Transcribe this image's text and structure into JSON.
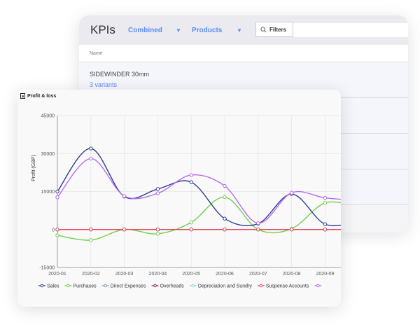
{
  "kpi_panel": {
    "title": "KPIs",
    "dropdown_combined": "Combined",
    "dropdown_products": "Products",
    "filters_label": "Filters",
    "column_name": "Name",
    "rows": [
      {
        "name": "SIDEWINDER 30mm",
        "variants": "3 variants"
      }
    ]
  },
  "chart_card": {
    "title": "Profit & loss",
    "icon": "document-icon"
  },
  "chart_data": {
    "type": "line",
    "ylabel": "Profit (GBP)",
    "xlabel": "",
    "ylim": [
      -15000,
      45000
    ],
    "yticks": [
      "-15000",
      "0",
      "15000",
      "30000",
      "45000"
    ],
    "categories": [
      "2020-01",
      "2020-02",
      "2020-03",
      "2020-04",
      "2020-05",
      "2020-06",
      "2020-07",
      "2020-08",
      "2020-09"
    ],
    "grid": true,
    "legend_position": "bottom",
    "series": [
      {
        "name": "Sales",
        "color": "#2f3e8f",
        "values": [
          15000,
          32000,
          13000,
          16000,
          18700,
          4300,
          2300,
          14000,
          2100
        ]
      },
      {
        "name": "Purchases",
        "color": "#6fd14a",
        "values": [
          -2300,
          -4200,
          0,
          -1700,
          2800,
          12800,
          0,
          300,
          10500
        ]
      },
      {
        "name": "Direct Expenses",
        "color": "#8a97b0",
        "values": [
          0,
          0,
          0,
          0,
          0,
          0,
          0,
          0,
          0
        ]
      },
      {
        "name": "Overheads",
        "color": "#8b2d5c",
        "values": [
          0,
          0,
          0,
          0,
          0,
          0,
          0,
          0,
          0
        ]
      },
      {
        "name": "Depreciation and Sundry",
        "color": "#8fd3e0",
        "values": [
          0,
          0,
          0,
          0,
          0,
          0,
          0,
          0,
          0
        ]
      },
      {
        "name": "Suspense Accounts",
        "color": "#e8455a",
        "values": [
          0,
          0,
          0,
          0,
          0,
          0,
          0,
          0,
          0
        ]
      },
      {
        "color": "#b76af2",
        "values": [
          12700,
          28000,
          13200,
          14300,
          21500,
          17200,
          2500,
          14500,
          12500
        ]
      }
    ]
  }
}
